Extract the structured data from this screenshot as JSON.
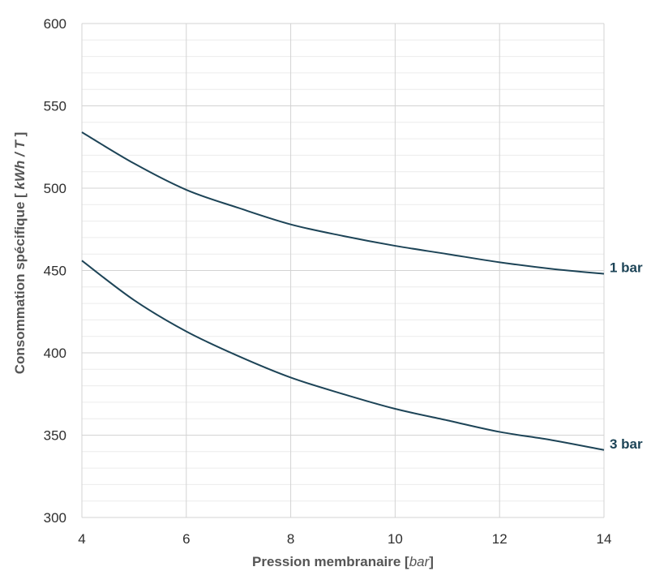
{
  "chart_data": {
    "type": "line",
    "xlabel": {
      "main": "Pression membranaire ",
      "open": "[",
      "unit": "bar",
      "close": "]"
    },
    "ylabel": {
      "main": "Consommation spécifique ",
      "open": "[ ",
      "unit": "kWh / T",
      "close": " ]"
    },
    "xlim": [
      4,
      14
    ],
    "ylim": [
      300,
      600
    ],
    "xticks": [
      4,
      6,
      8,
      10,
      12,
      14
    ],
    "yticks": [
      300,
      350,
      400,
      450,
      500,
      550,
      600
    ],
    "y_minor_step": 10,
    "grid": true,
    "line_color": "#1d4457",
    "series": [
      {
        "name": "1 bar",
        "x": [
          4,
          5,
          6,
          7,
          8,
          9,
          10,
          11,
          12,
          13,
          14
        ],
        "y": [
          534,
          515,
          499,
          488,
          478,
          471,
          465,
          460,
          455,
          451,
          448
        ]
      },
      {
        "name": "3 bar",
        "x": [
          4,
          5,
          6,
          7,
          8,
          9,
          10,
          11,
          12,
          13,
          14
        ],
        "y": [
          456,
          432,
          413,
          398,
          385,
          375,
          366,
          359,
          352,
          347,
          341
        ]
      }
    ]
  }
}
